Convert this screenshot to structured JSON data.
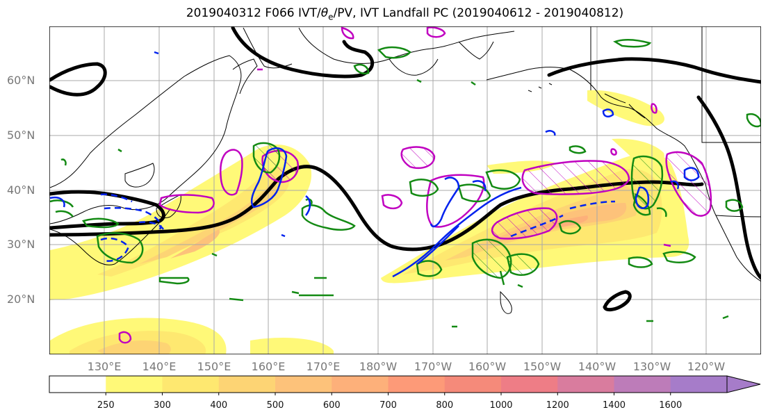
{
  "title": {
    "prefix": "2019040312 F066 IVT/",
    "theta": "θ",
    "theta_sub": "e",
    "suffix": "/PV, IVT Landfall PC (2019040612 - 2019040812)"
  },
  "map": {
    "lat_labels": [
      "60°N",
      "50°N",
      "40°N",
      "30°N",
      "20°N"
    ],
    "lon_labels": [
      "130°E",
      "140°E",
      "150°E",
      "160°E",
      "170°E",
      "180°W",
      "170°W",
      "160°W",
      "150°W",
      "140°W",
      "130°W",
      "120°W"
    ],
    "colors": {
      "ivt_low": "#fff978",
      "ivt_mid": "#fdc27a",
      "ivt_high": "#f5907a",
      "theta_e": "#000000",
      "pv_blue": "#0022ee",
      "pv_green": "#138a13",
      "magenta": "#c000c0",
      "coast": "#000000",
      "grid": "#a8a8a8"
    }
  },
  "colorbar": {
    "ticks": [
      "250",
      "300",
      "400",
      "500",
      "600",
      "700",
      "800",
      "1000",
      "1200",
      "1400",
      "1600"
    ],
    "colors": [
      "#ffffff",
      "#fff978",
      "#fee870",
      "#fdd474",
      "#fdc27a",
      "#fdb07a",
      "#fd9a78",
      "#f58a7a",
      "#ee7d86",
      "#d97c9e",
      "#bd7cb9",
      "#a67cc9"
    ]
  }
}
